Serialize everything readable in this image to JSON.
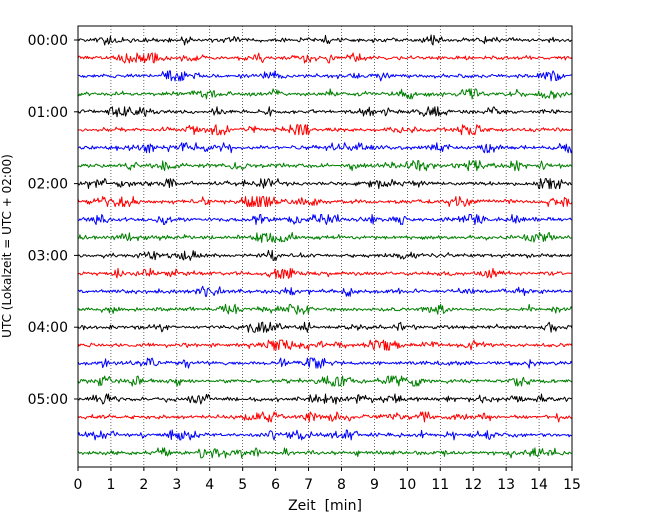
{
  "chart_data": {
    "type": "line",
    "title": "",
    "xlabel": "Zeit  [min]",
    "ylabel": "UTC (Lokalzeit = UTC + 02:00)",
    "xlim": [
      0,
      15
    ],
    "xticks": [
      "0",
      "1",
      "2",
      "3",
      "4",
      "5",
      "6",
      "7",
      "8",
      "9",
      "10",
      "11",
      "12",
      "13",
      "14",
      "15"
    ],
    "y_tick_labels": [
      "00:00",
      "01:00",
      "02:00",
      "03:00",
      "04:00",
      "05:00"
    ],
    "row_interval_min": 15,
    "grid": "vertical dotted lines at each minute",
    "legend": "none",
    "trace_colors": [
      "#000000",
      "#ff0000",
      "#0000ff",
      "#008000"
    ],
    "series": [
      {
        "start": "00:00",
        "color": "#000000"
      },
      {
        "start": "00:15",
        "color": "#ff0000"
      },
      {
        "start": "00:30",
        "color": "#0000ff"
      },
      {
        "start": "00:45",
        "color": "#008000"
      },
      {
        "start": "01:00",
        "color": "#000000"
      },
      {
        "start": "01:15",
        "color": "#ff0000"
      },
      {
        "start": "01:30",
        "color": "#0000ff"
      },
      {
        "start": "01:45",
        "color": "#008000"
      },
      {
        "start": "02:00",
        "color": "#000000"
      },
      {
        "start": "02:15",
        "color": "#ff0000"
      },
      {
        "start": "02:30",
        "color": "#0000ff"
      },
      {
        "start": "02:45",
        "color": "#008000"
      },
      {
        "start": "03:00",
        "color": "#000000"
      },
      {
        "start": "03:15",
        "color": "#ff0000"
      },
      {
        "start": "03:30",
        "color": "#0000ff"
      },
      {
        "start": "03:45",
        "color": "#008000"
      },
      {
        "start": "04:00",
        "color": "#000000"
      },
      {
        "start": "04:15",
        "color": "#ff0000"
      },
      {
        "start": "04:30",
        "color": "#0000ff"
      },
      {
        "start": "04:45",
        "color": "#008000"
      },
      {
        "start": "05:00",
        "color": "#000000"
      },
      {
        "start": "05:15",
        "color": "#ff0000"
      },
      {
        "start": "05:30",
        "color": "#0000ff"
      },
      {
        "start": "05:45",
        "color": "#008000"
      }
    ]
  }
}
